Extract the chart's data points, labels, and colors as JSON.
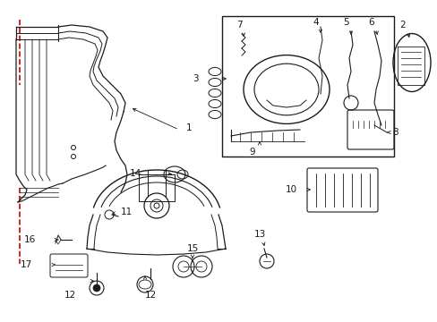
{
  "bg_color": "#ffffff",
  "line_color": "#1a1a1a",
  "red_color": "#cc0000",
  "figsize": [
    4.89,
    3.6
  ],
  "dpi": 100,
  "xlim": [
    0,
    489
  ],
  "ylim": [
    0,
    360
  ]
}
